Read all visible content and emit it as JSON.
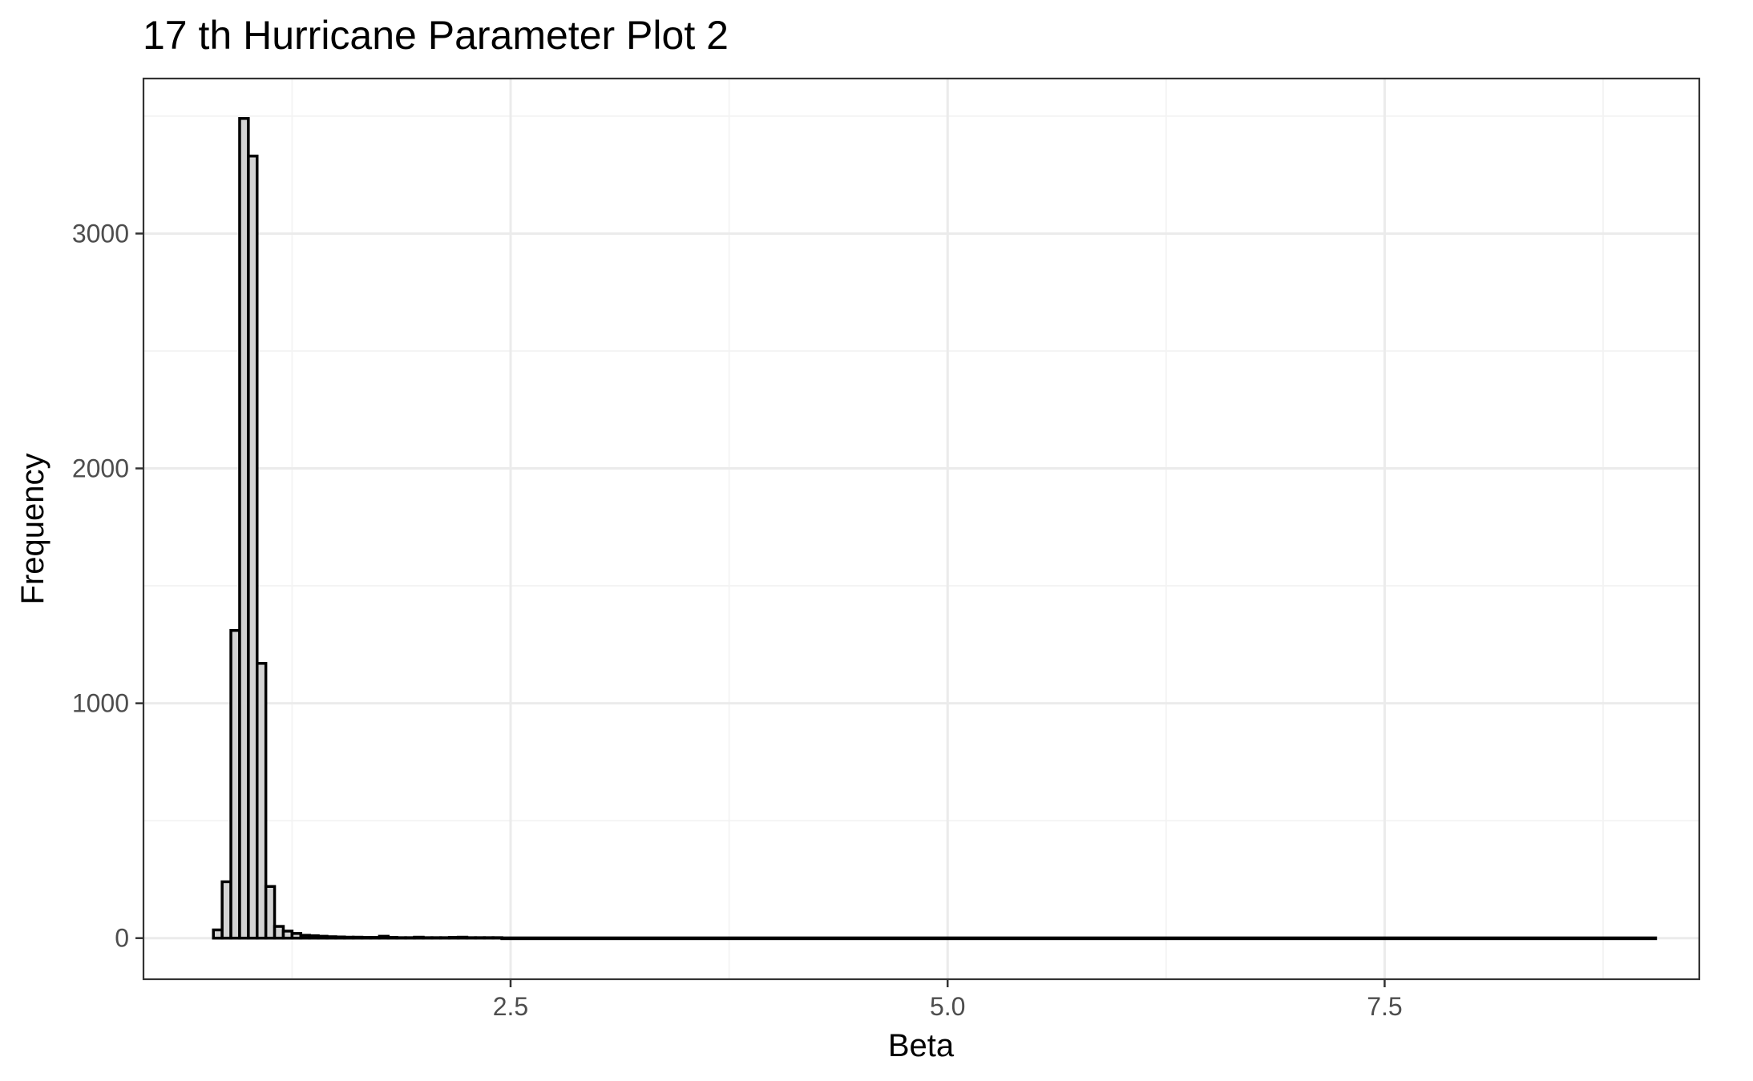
{
  "chart_data": {
    "type": "bar",
    "title": "17 th Hurricane Parameter Plot 2",
    "xlabel": "Beta",
    "ylabel": "Frequency",
    "xlim": [
      0.4,
      9.3
    ],
    "ylim": [
      -175,
      3660
    ],
    "x_ticks": [
      2.5,
      5.0,
      7.5
    ],
    "x_tick_labels": [
      "2.5",
      "5.0",
      "7.5"
    ],
    "y_ticks": [
      0,
      1000,
      2000,
      3000
    ],
    "y_tick_labels": [
      "0",
      "1000",
      "2000",
      "3000"
    ],
    "grid": true,
    "bin_width": 0.05,
    "bins_start": [
      0.8,
      0.85,
      0.9,
      0.95,
      1.0,
      1.05,
      1.1,
      1.15,
      1.2,
      1.25,
      1.3,
      1.35,
      1.4,
      1.45,
      1.5,
      1.55,
      1.6,
      1.65,
      1.7,
      1.75,
      1.8,
      1.85,
      1.9,
      1.95,
      2.0,
      2.05,
      2.1,
      2.15,
      2.2,
      2.25,
      2.3,
      2.35,
      2.4
    ],
    "values": [
      35,
      240,
      1310,
      3490,
      3330,
      1170,
      220,
      50,
      30,
      20,
      12,
      10,
      8,
      6,
      5,
      4,
      4,
      3,
      3,
      8,
      3,
      2,
      2,
      4,
      2,
      2,
      2,
      3,
      4,
      2,
      2,
      2,
      2
    ],
    "tail_range": [
      2.45,
      9.05
    ],
    "tail_value": 1,
    "colors": {
      "bar_fill": "#d3d3d3",
      "bar_outline": "#000000",
      "grid": "#ebebeb",
      "panel_border": "#333333"
    }
  }
}
